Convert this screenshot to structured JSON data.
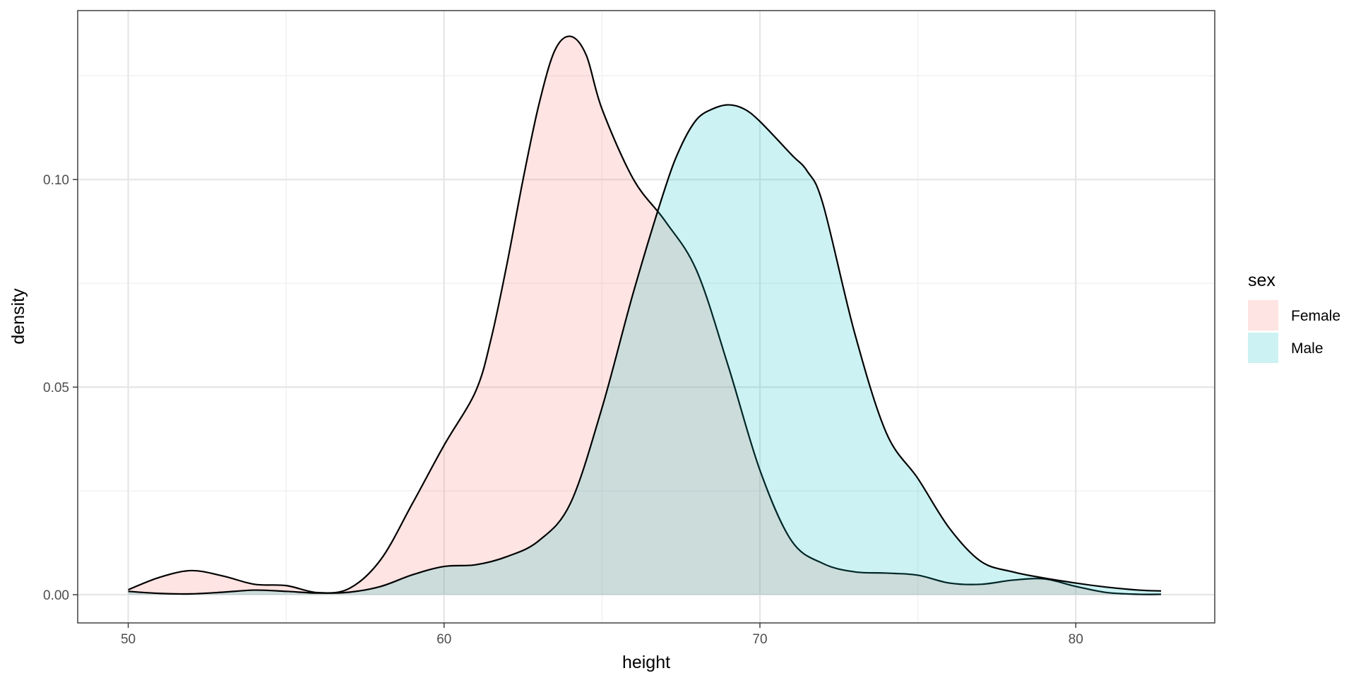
{
  "chart_data": {
    "type": "area",
    "subtype": "density",
    "title": "",
    "xlabel": "height",
    "ylabel": "density",
    "xlim": [
      48.4,
      84.4
    ],
    "ylim": [
      -0.0068,
      0.1407
    ],
    "x_ticks": [
      50,
      60,
      70,
      80
    ],
    "x_tick_labels": [
      "50",
      "60",
      "70",
      "80"
    ],
    "y_ticks": [
      0,
      0.05,
      0.1
    ],
    "y_tick_labels": [
      "0.00",
      "0.05",
      "0.10"
    ],
    "x_minor_gridlines": [
      55,
      65,
      75
    ],
    "y_minor_gridlines": [
      0.025,
      0.075,
      0.125
    ],
    "grid": true,
    "legend": {
      "title": "sex",
      "position": "right"
    },
    "series": [
      {
        "name": "Female",
        "fill": "#F8766D",
        "x": [
          50,
          51,
          52,
          53,
          54,
          55,
          56,
          57,
          58,
          59,
          60,
          61,
          61.5,
          62,
          62.5,
          63,
          63.5,
          64,
          64.5,
          65,
          66,
          67,
          68,
          69,
          70,
          71,
          72,
          73,
          74,
          75,
          76,
          77,
          78,
          79,
          80,
          81,
          82,
          82.7
        ],
        "y": [
          0.0012,
          0.0042,
          0.0058,
          0.0045,
          0.0025,
          0.0022,
          0.0005,
          0.0015,
          0.0085,
          0.022,
          0.036,
          0.049,
          0.062,
          0.08,
          0.1,
          0.118,
          0.131,
          0.1345,
          0.13,
          0.117,
          0.1,
          0.09,
          0.078,
          0.055,
          0.03,
          0.013,
          0.0075,
          0.0055,
          0.0052,
          0.0047,
          0.0028,
          0.0025,
          0.0035,
          0.0038,
          0.002,
          0.0005,
          0.0001,
          0.0001
        ]
      },
      {
        "name": "Male",
        "fill": "#00BFC4",
        "x": [
          50,
          51,
          52,
          53,
          54,
          55,
          56,
          57,
          58,
          59,
          60,
          61,
          62,
          63,
          64,
          65,
          66,
          67,
          67.5,
          68,
          68.5,
          69,
          69.5,
          70,
          71,
          71.5,
          72,
          73,
          74,
          75,
          76,
          77,
          78,
          79,
          80,
          81,
          82,
          82.7
        ],
        "y": [
          0.0008,
          0.0003,
          0.0002,
          0.0006,
          0.0011,
          0.0008,
          0.0004,
          0.0006,
          0.002,
          0.0048,
          0.0068,
          0.0072,
          0.0092,
          0.013,
          0.022,
          0.045,
          0.073,
          0.098,
          0.108,
          0.1145,
          0.117,
          0.118,
          0.117,
          0.114,
          0.106,
          0.102,
          0.094,
          0.063,
          0.039,
          0.028,
          0.016,
          0.008,
          0.0055,
          0.004,
          0.0028,
          0.0018,
          0.0011,
          0.0009
        ]
      }
    ]
  }
}
